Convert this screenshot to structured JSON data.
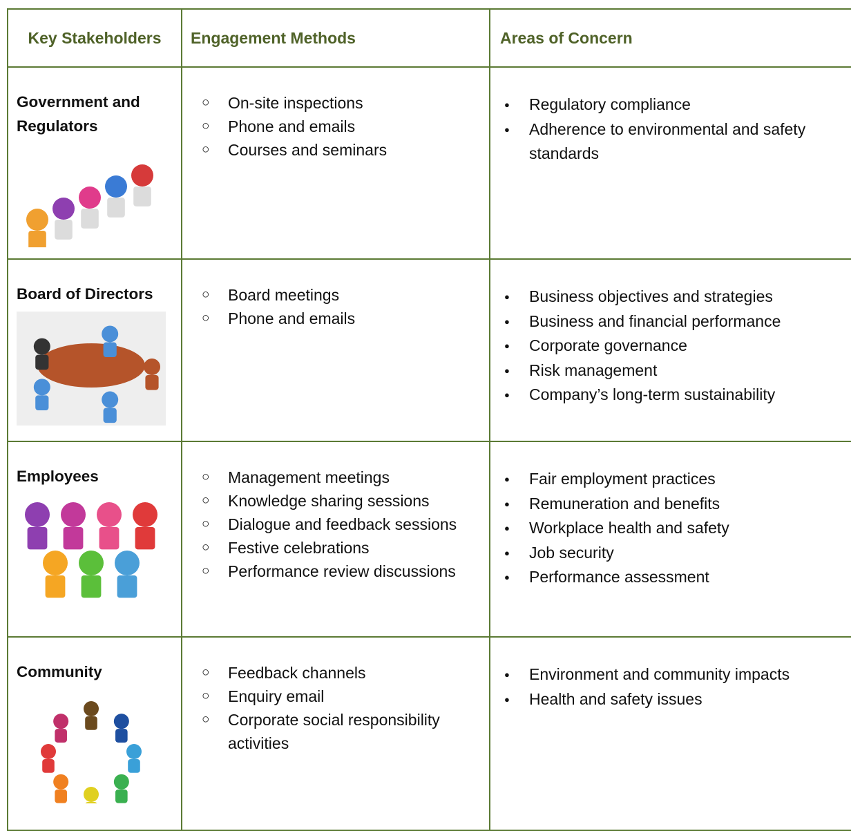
{
  "table": {
    "header": [
      "Key Stakeholders",
      "Engagement Methods",
      "Areas of Concern"
    ],
    "rows": [
      {
        "stakeholder": "Government and Regulators",
        "methods": [
          "On-site inspections",
          "Phone and emails",
          "Courses and seminars"
        ],
        "concerns": [
          "Regulatory compliance",
          "Adherence to environmental and safety standards"
        ]
      },
      {
        "stakeholder": "Board of Directors",
        "methods": [
          "Board meetings",
          "Phone and emails"
        ],
        "concerns": [
          "Business objectives and strategies",
          "Business and financial performance",
          "Corporate governance",
          "Risk management",
          "Company’s long-term sustainability"
        ]
      },
      {
        "stakeholder": "Employees",
        "methods": [
          "Management meetings",
          "Knowledge sharing sessions",
          "Dialogue and feedback sessions",
          "Festive celebrations",
          "Performance review discussions"
        ],
        "concerns": [
          "Fair employment practices",
          "Remuneration and benefits",
          "Workplace health and safety",
          "Job security",
          "Performance assessment"
        ]
      },
      {
        "stakeholder": "Community",
        "methods": [
          "Feedback channels",
          "Enquiry email",
          "Corporate social responsibility activities"
        ],
        "concerns": [
          "Environment and community impacts",
          "Health and safety issues"
        ]
      }
    ]
  }
}
